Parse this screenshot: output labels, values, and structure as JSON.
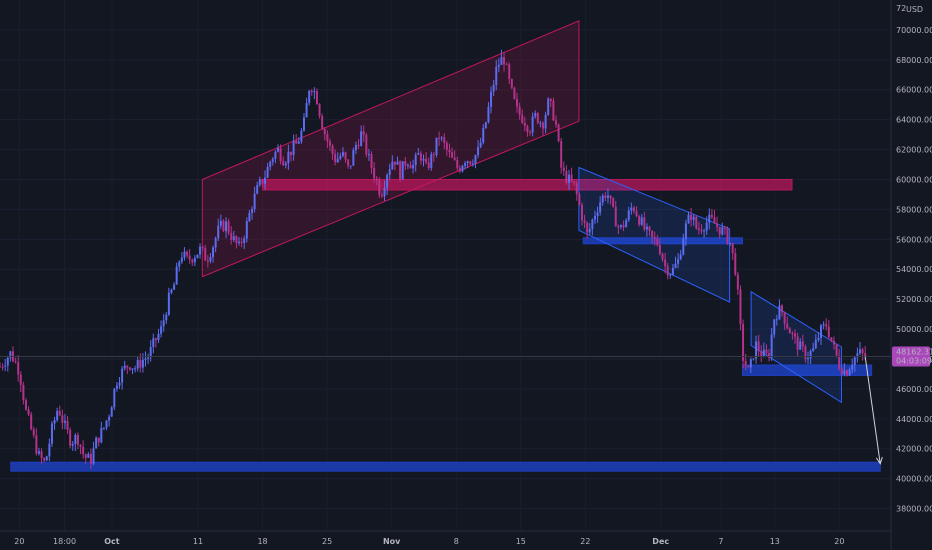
{
  "header": {
    "price_axis_top_label": "72",
    "currency": "USD"
  },
  "price_tag": {
    "value": "48162.31",
    "countdown": "04:03:09",
    "color": "#ab47bc"
  },
  "colors": {
    "up": "#5b6df0",
    "down": "#b5338a",
    "wick": "#8f7fd0",
    "pink_zone": "#b8185c",
    "pink_channel": "#c2185b",
    "blue_zone": "#1e3fbf",
    "blue_channel": "#2962ff",
    "projection": "#d1d4dc"
  },
  "chart_data": {
    "type": "candlestick",
    "title": "",
    "ylim": [
      36500,
      72000
    ],
    "y_ticks": [
      38000,
      40000,
      42000,
      44000,
      46000,
      48000,
      50000,
      52000,
      54000,
      56000,
      58000,
      60000,
      62000,
      64000,
      66000,
      68000,
      70000
    ],
    "y_tick_labels": [
      "38000.00",
      "40000.00",
      "42000.00",
      "44000.00",
      "46000.00",
      "48000.00",
      "50000.00",
      "52000.00",
      "54000.00",
      "56000.00",
      "58000.00",
      "60000.00",
      "62000.00",
      "64000.00",
      "66000.00",
      "68000.00",
      "70000.00"
    ],
    "x_ticks": [
      {
        "label": "20",
        "t": 0
      },
      {
        "label": "18:00",
        "t": 2.1
      },
      {
        "label": "Oct",
        "t": 4.3
      },
      {
        "label": "11",
        "t": 8.3
      },
      {
        "label": "18",
        "t": 11.3
      },
      {
        "label": "25",
        "t": 14.3
      },
      {
        "label": "Nov",
        "t": 17.3
      },
      {
        "label": "8",
        "t": 20.3
      },
      {
        "label": "15",
        "t": 23.3
      },
      {
        "label": "22",
        "t": 26.3
      },
      {
        "label": "Dec",
        "t": 29.8
      },
      {
        "label": "7",
        "t": 32.6
      },
      {
        "label": "13",
        "t": 35.1
      },
      {
        "label": "20",
        "t": 38.1
      }
    ],
    "x_range": [
      -0.9,
      40.5
    ],
    "price_path": [
      [
        -0.9,
        47500
      ],
      [
        -0.4,
        48400
      ],
      [
        0.0,
        47200
      ],
      [
        0.3,
        44500
      ],
      [
        0.6,
        43000
      ],
      [
        0.9,
        41500
      ],
      [
        1.2,
        41000
      ],
      [
        1.5,
        43200
      ],
      [
        1.8,
        44800
      ],
      [
        2.1,
        43500
      ],
      [
        2.4,
        42500
      ],
      [
        2.7,
        42800
      ],
      [
        3.0,
        41500
      ],
      [
        3.3,
        41200
      ],
      [
        3.6,
        42600
      ],
      [
        3.9,
        43300
      ],
      [
        4.2,
        44500
      ],
      [
        4.5,
        46500
      ],
      [
        4.8,
        47200
      ],
      [
        5.1,
        47700
      ],
      [
        5.4,
        47400
      ],
      [
        5.7,
        47900
      ],
      [
        6.0,
        48200
      ],
      [
        6.3,
        49200
      ],
      [
        6.6,
        50000
      ],
      [
        6.9,
        51800
      ],
      [
        7.2,
        53000
      ],
      [
        7.5,
        55100
      ],
      [
        7.8,
        54600
      ],
      [
        8.1,
        54900
      ],
      [
        8.4,
        55300
      ],
      [
        8.7,
        54700
      ],
      [
        9.0,
        55600
      ],
      [
        9.3,
        56800
      ],
      [
        9.6,
        57000
      ],
      [
        9.9,
        56100
      ],
      [
        10.2,
        55400
      ],
      [
        10.5,
        56600
      ],
      [
        10.8,
        58300
      ],
      [
        11.1,
        59500
      ],
      [
        11.4,
        60200
      ],
      [
        11.7,
        61400
      ],
      [
        12.0,
        62000
      ],
      [
        12.3,
        61300
      ],
      [
        12.6,
        61900
      ],
      [
        12.9,
        62400
      ],
      [
        13.2,
        63500
      ],
      [
        13.5,
        66500
      ],
      [
        13.8,
        65600
      ],
      [
        14.1,
        63500
      ],
      [
        14.4,
        62200
      ],
      [
        14.7,
        61300
      ],
      [
        15.0,
        61700
      ],
      [
        15.3,
        60600
      ],
      [
        15.6,
        62200
      ],
      [
        15.9,
        63100
      ],
      [
        16.2,
        61500
      ],
      [
        16.5,
        60300
      ],
      [
        16.8,
        59000
      ],
      [
        17.1,
        60600
      ],
      [
        17.4,
        61500
      ],
      [
        17.7,
        60400
      ],
      [
        18.0,
        61400
      ],
      [
        18.3,
        60900
      ],
      [
        18.6,
        61800
      ],
      [
        18.9,
        60700
      ],
      [
        19.2,
        61600
      ],
      [
        19.5,
        62900
      ],
      [
        19.8,
        62100
      ],
      [
        20.1,
        61300
      ],
      [
        20.4,
        60700
      ],
      [
        20.7,
        61400
      ],
      [
        21.0,
        61300
      ],
      [
        21.3,
        61800
      ],
      [
        21.6,
        63300
      ],
      [
        21.9,
        65500
      ],
      [
        22.2,
        67600
      ],
      [
        22.5,
        68200
      ],
      [
        22.8,
        66200
      ],
      [
        23.1,
        64600
      ],
      [
        23.4,
        64100
      ],
      [
        23.7,
        63400
      ],
      [
        24.0,
        64300
      ],
      [
        24.3,
        63700
      ],
      [
        24.6,
        65200
      ],
      [
        24.9,
        64000
      ],
      [
        25.2,
        60500
      ],
      [
        25.5,
        60000
      ],
      [
        25.8,
        59500
      ],
      [
        26.1,
        57800
      ],
      [
        26.4,
        56200
      ],
      [
        26.7,
        57600
      ],
      [
        27.0,
        58600
      ],
      [
        27.3,
        59200
      ],
      [
        27.6,
        57700
      ],
      [
        27.9,
        56600
      ],
      [
        28.2,
        57300
      ],
      [
        28.5,
        58300
      ],
      [
        28.8,
        57400
      ],
      [
        29.1,
        56500
      ],
      [
        29.4,
        56000
      ],
      [
        29.7,
        55700
      ],
      [
        30.0,
        54200
      ],
      [
        30.3,
        53800
      ],
      [
        30.6,
        54500
      ],
      [
        30.9,
        56600
      ],
      [
        31.2,
        57700
      ],
      [
        31.5,
        56600
      ],
      [
        31.8,
        57000
      ],
      [
        32.1,
        57300
      ],
      [
        32.4,
        56900
      ],
      [
        32.7,
        56500
      ],
      [
        33.0,
        55900
      ],
      [
        33.3,
        53800
      ],
      [
        33.6,
        48200
      ],
      [
        33.9,
        47000
      ],
      [
        34.2,
        49000
      ],
      [
        34.5,
        48300
      ],
      [
        34.8,
        48100
      ],
      [
        35.1,
        51000
      ],
      [
        35.4,
        51300
      ],
      [
        35.7,
        50200
      ],
      [
        36.0,
        49300
      ],
      [
        36.3,
        48700
      ],
      [
        36.6,
        48200
      ],
      [
        36.9,
        48600
      ],
      [
        37.2,
        49800
      ],
      [
        37.5,
        50300
      ],
      [
        37.8,
        48900
      ],
      [
        38.1,
        47600
      ],
      [
        38.4,
        47100
      ],
      [
        38.7,
        47900
      ],
      [
        39.0,
        48400
      ],
      [
        39.3,
        48162
      ]
    ],
    "zones": [
      {
        "name": "pink-resistance-zone",
        "kind": "pink",
        "t0": 11.3,
        "t1": 35.9,
        "p0": 59300,
        "p1": 60000
      },
      {
        "name": "blue-zone-mid",
        "kind": "blue",
        "t0": 26.2,
        "t1": 33.6,
        "p0": 55700,
        "p1": 56100
      },
      {
        "name": "blue-zone-low",
        "kind": "blue",
        "t0": 33.6,
        "t1": 39.6,
        "p0": 46900,
        "p1": 47600
      },
      {
        "name": "blue-support-zone",
        "kind": "blue",
        "t0": -0.4,
        "t1": 40.0,
        "p0": 40500,
        "p1": 41100
      }
    ],
    "channels": [
      {
        "name": "pink-rising-channel",
        "kind": "pink",
        "pts": [
          [
            8.5,
            60000
          ],
          [
            26.0,
            70600
          ],
          [
            26.0,
            63900
          ],
          [
            8.5,
            53500
          ]
        ]
      },
      {
        "name": "blue-falling-channel-1",
        "kind": "blue",
        "pts": [
          [
            26.0,
            60800
          ],
          [
            33.0,
            56700
          ],
          [
            33.0,
            51800
          ],
          [
            26.0,
            56600
          ]
        ]
      },
      {
        "name": "blue-falling-channel-2",
        "kind": "blue",
        "pts": [
          [
            34.0,
            52500
          ],
          [
            38.2,
            48800
          ],
          [
            38.2,
            45100
          ],
          [
            34.0,
            48900
          ]
        ]
      }
    ],
    "projection_arrow": {
      "from": [
        39.3,
        48162
      ],
      "to": [
        40.0,
        41000
      ]
    },
    "current_price": 48162.31,
    "crosshair_price": 48162.31
  }
}
